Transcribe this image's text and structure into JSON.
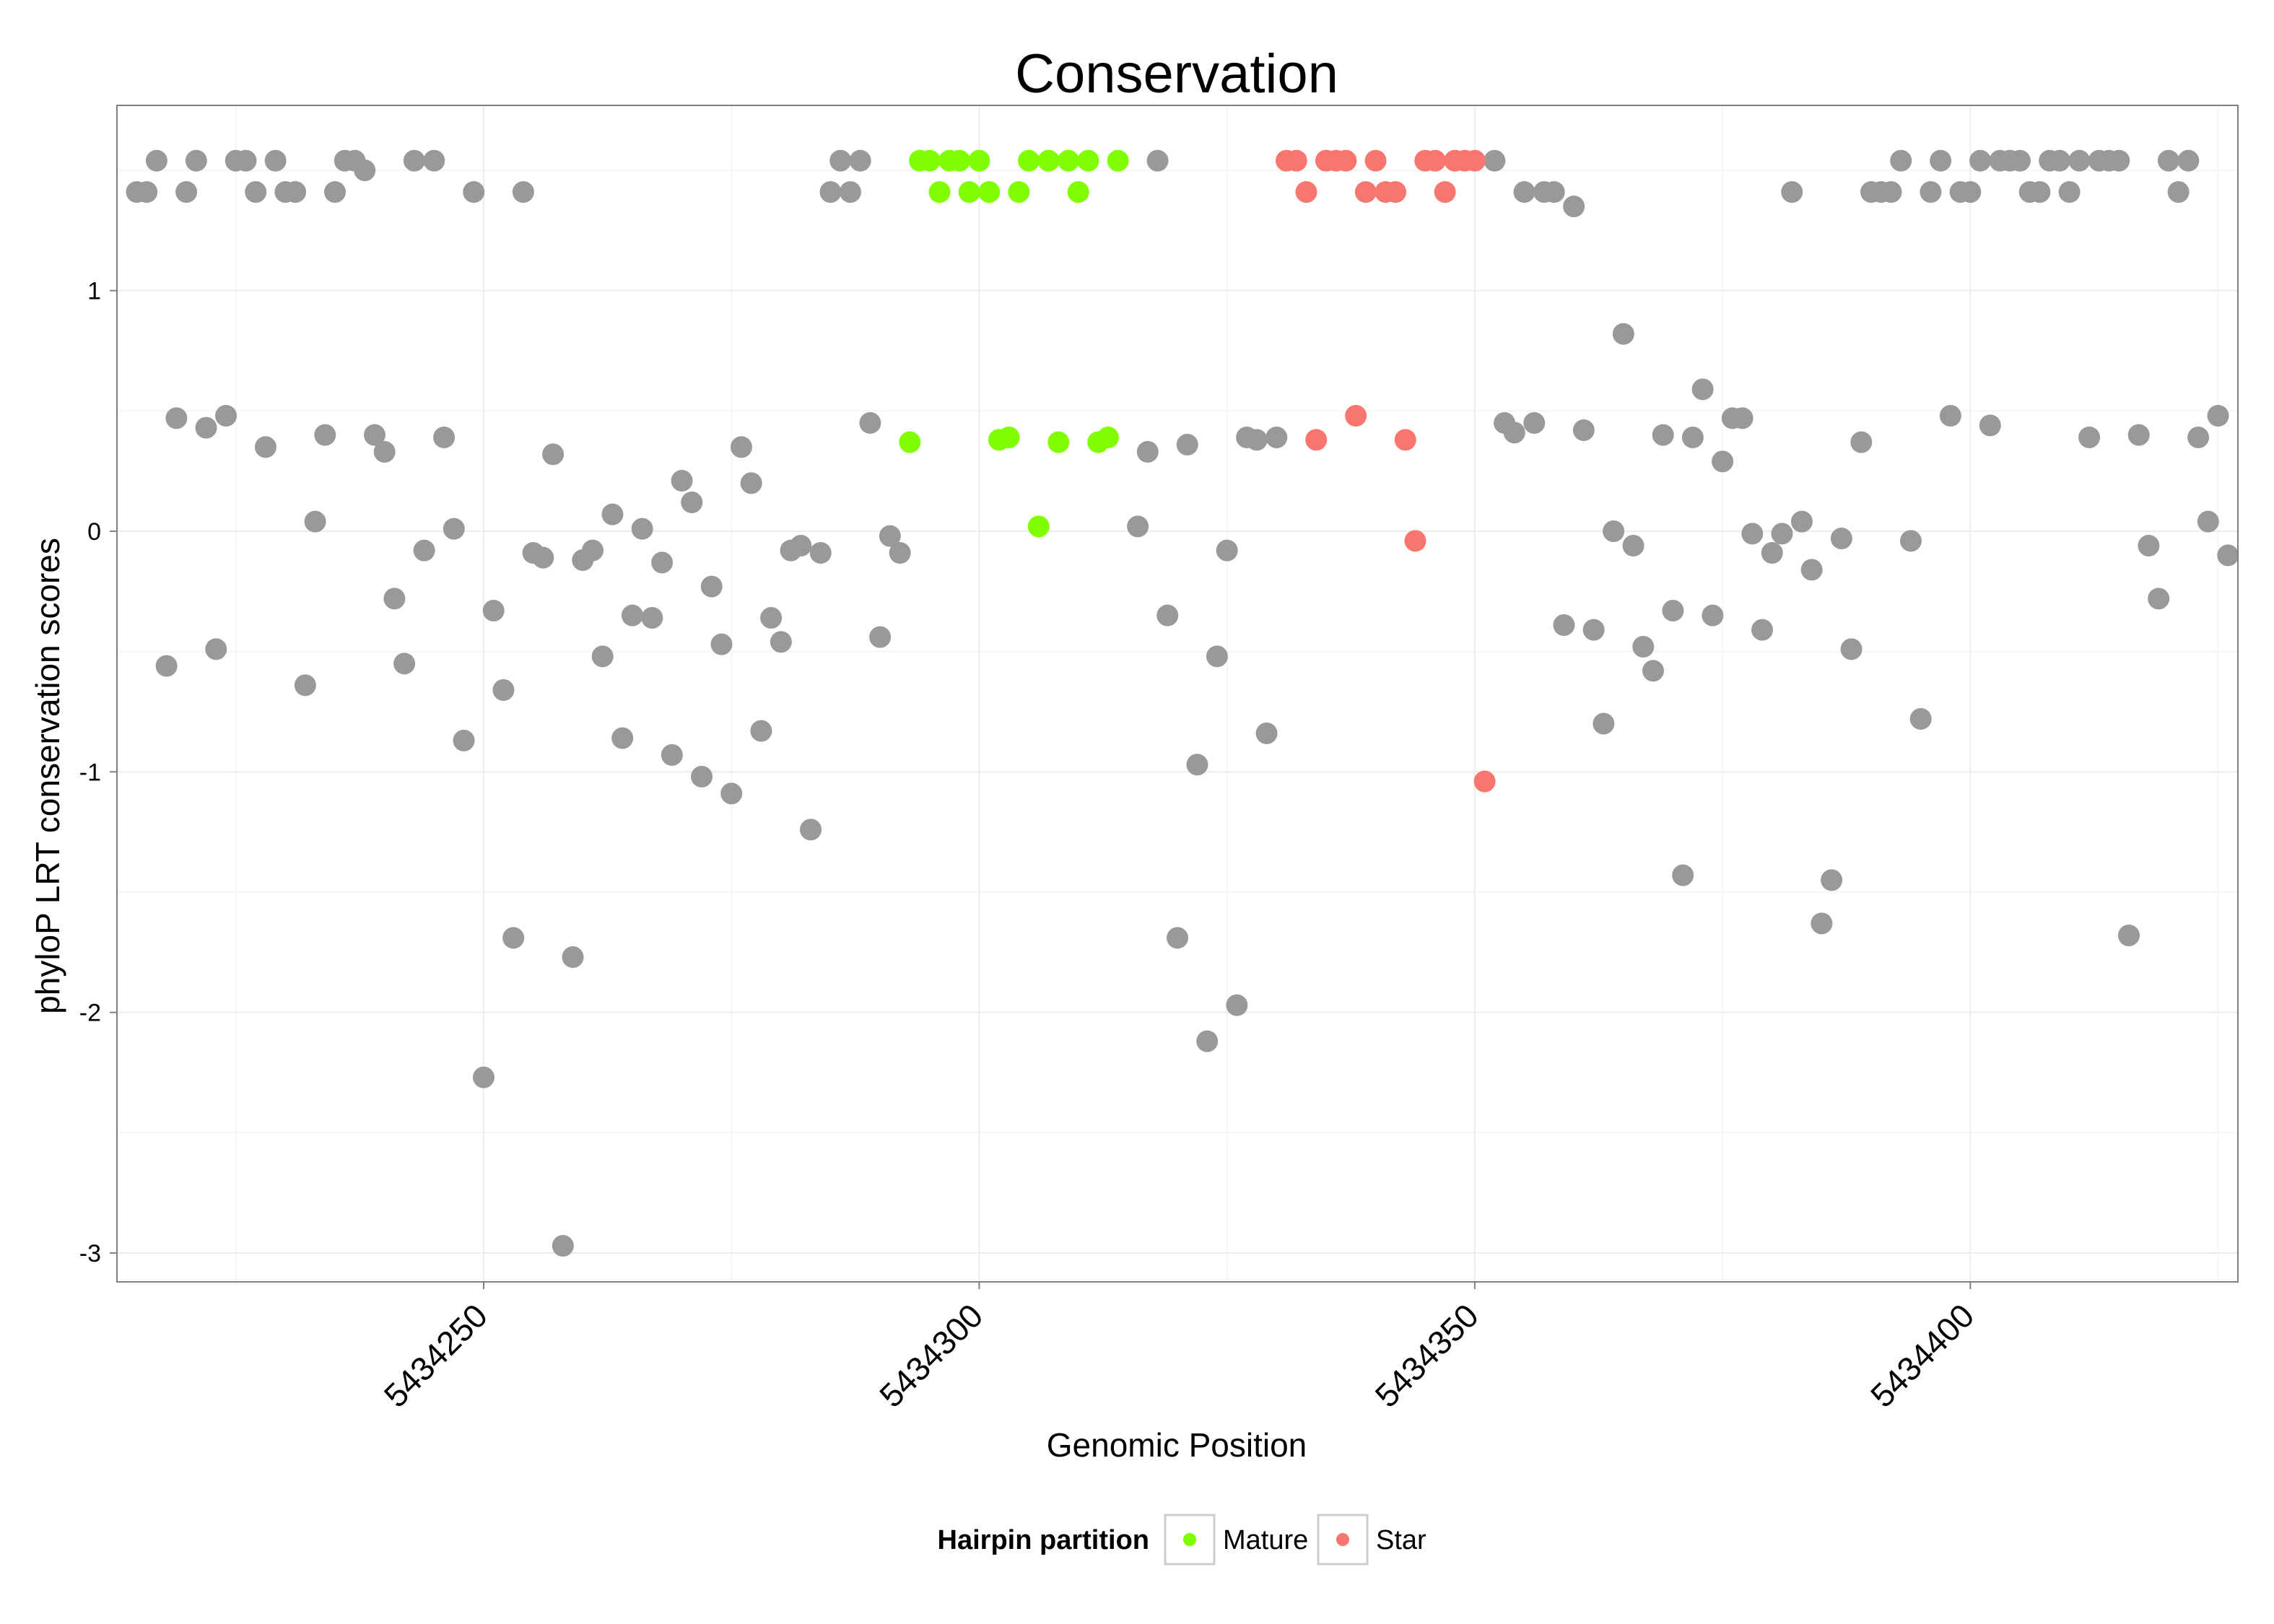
{
  "chart_data": {
    "type": "scatter",
    "title": "Conservation",
    "xlabel": "Genomic Position",
    "ylabel": "phyloP LRT conservation scores",
    "xlim": [
      5434213,
      5434427
    ],
    "ylim": [
      -3.12,
      1.77
    ],
    "x_ticks": [
      5434250,
      5434300,
      5434350,
      5434400
    ],
    "x_tick_labels": [
      "5434250",
      "5434300",
      "5434350",
      "5434400"
    ],
    "y_ticks": [
      -3,
      -2,
      -1,
      0,
      1
    ],
    "y_tick_labels": [
      "-3",
      "-2",
      "-1",
      "0",
      "1"
    ],
    "legend": {
      "title": "Hairpin partition",
      "position": "bottom",
      "entries": [
        {
          "label": "Mature",
          "color": "#7FFF00"
        },
        {
          "label": "Star",
          "color": "#F8766D"
        }
      ]
    },
    "colors": {
      "Other": "#999999",
      "Mature": "#7FFF00",
      "Star": "#F8766D"
    },
    "series": [
      {
        "name": "Other",
        "points": [
          [
            5434215,
            1.41
          ],
          [
            5434216,
            1.41
          ],
          [
            5434217,
            1.54
          ],
          [
            5434218,
            -0.56
          ],
          [
            5434219,
            0.47
          ],
          [
            5434220,
            1.41
          ],
          [
            5434221,
            1.54
          ],
          [
            5434222,
            0.43
          ],
          [
            5434223,
            -0.49
          ],
          [
            5434224,
            0.48
          ],
          [
            5434225,
            1.54
          ],
          [
            5434226,
            1.54
          ],
          [
            5434227,
            1.41
          ],
          [
            5434228,
            0.35
          ],
          [
            5434229,
            1.54
          ],
          [
            5434230,
            1.41
          ],
          [
            5434231,
            1.41
          ],
          [
            5434232,
            -0.64
          ],
          [
            5434233,
            0.04
          ],
          [
            5434234,
            0.4
          ],
          [
            5434235,
            1.41
          ],
          [
            5434236,
            1.54
          ],
          [
            5434237,
            1.54
          ],
          [
            5434238,
            1.5
          ],
          [
            5434239,
            0.4
          ],
          [
            5434240,
            0.33
          ],
          [
            5434241,
            -0.28
          ],
          [
            5434242,
            -0.55
          ],
          [
            5434243,
            1.54
          ],
          [
            5434244,
            -0.08
          ],
          [
            5434245,
            1.54
          ],
          [
            5434246,
            0.39
          ],
          [
            5434247,
            0.01
          ],
          [
            5434248,
            -0.87
          ],
          [
            5434249,
            1.41
          ],
          [
            5434250,
            -2.27
          ],
          [
            5434251,
            -0.33
          ],
          [
            5434252,
            -0.66
          ],
          [
            5434253,
            -1.69
          ],
          [
            5434254,
            1.41
          ],
          [
            5434255,
            -0.09
          ],
          [
            5434256,
            -0.11
          ],
          [
            5434257,
            0.32
          ],
          [
            5434258,
            -2.97
          ],
          [
            5434259,
            -1.77
          ],
          [
            5434260,
            -0.12
          ],
          [
            5434261,
            -0.08
          ],
          [
            5434262,
            -0.52
          ],
          [
            5434263,
            0.07
          ],
          [
            5434264,
            -0.86
          ],
          [
            5434265,
            -0.35
          ],
          [
            5434266,
            0.01
          ],
          [
            5434267,
            -0.36
          ],
          [
            5434268,
            -0.13
          ],
          [
            5434269,
            -0.93
          ],
          [
            5434270,
            0.21
          ],
          [
            5434271,
            0.12
          ],
          [
            5434272,
            -1.02
          ],
          [
            5434273,
            -0.23
          ],
          [
            5434274,
            -0.47
          ],
          [
            5434275,
            -1.09
          ],
          [
            5434276,
            0.35
          ],
          [
            5434277,
            0.2
          ],
          [
            5434278,
            -0.83
          ],
          [
            5434279,
            -0.36
          ],
          [
            5434280,
            -0.46
          ],
          [
            5434281,
            -0.08
          ],
          [
            5434282,
            -0.06
          ],
          [
            5434283,
            -1.24
          ],
          [
            5434284,
            -0.09
          ],
          [
            5434285,
            1.41
          ],
          [
            5434286,
            1.54
          ],
          [
            5434287,
            1.41
          ],
          [
            5434288,
            1.54
          ],
          [
            5434289,
            0.45
          ],
          [
            5434290,
            -0.44
          ],
          [
            5434291,
            -0.02
          ],
          [
            5434292,
            -0.09
          ],
          [
            5434316,
            0.02
          ],
          [
            5434317,
            0.33
          ],
          [
            5434318,
            1.54
          ],
          [
            5434319,
            -0.35
          ],
          [
            5434320,
            -1.69
          ],
          [
            5434321,
            0.36
          ],
          [
            5434322,
            -0.97
          ],
          [
            5434323,
            -2.12
          ],
          [
            5434324,
            -0.52
          ],
          [
            5434325,
            -0.08
          ],
          [
            5434326,
            -1.97
          ],
          [
            5434327,
            0.39
          ],
          [
            5434328,
            0.38
          ],
          [
            5434329,
            -0.84
          ],
          [
            5434330,
            0.39
          ],
          [
            5434352,
            1.54
          ],
          [
            5434353,
            0.45
          ],
          [
            5434354,
            0.41
          ],
          [
            5434355,
            1.41
          ],
          [
            5434356,
            0.45
          ],
          [
            5434357,
            1.41
          ],
          [
            5434358,
            1.41
          ],
          [
            5434359,
            -0.39
          ],
          [
            5434360,
            1.35
          ],
          [
            5434361,
            0.42
          ],
          [
            5434362,
            -0.41
          ],
          [
            5434363,
            -0.8
          ],
          [
            5434364,
            0.0
          ],
          [
            5434365,
            0.82
          ],
          [
            5434366,
            -0.06
          ],
          [
            5434367,
            -0.48
          ],
          [
            5434368,
            -0.58
          ],
          [
            5434369,
            0.4
          ],
          [
            5434370,
            -0.33
          ],
          [
            5434371,
            -1.43
          ],
          [
            5434372,
            0.39
          ],
          [
            5434373,
            0.59
          ],
          [
            5434374,
            -0.35
          ],
          [
            5434375,
            0.29
          ],
          [
            5434376,
            0.47
          ],
          [
            5434377,
            0.47
          ],
          [
            5434378,
            -0.01
          ],
          [
            5434379,
            -0.41
          ],
          [
            5434380,
            -0.09
          ],
          [
            5434381,
            -0.01
          ],
          [
            5434382,
            1.41
          ],
          [
            5434383,
            0.04
          ],
          [
            5434384,
            -0.16
          ],
          [
            5434385,
            -1.63
          ],
          [
            5434386,
            -1.45
          ],
          [
            5434387,
            -0.03
          ],
          [
            5434388,
            -0.49
          ],
          [
            5434389,
            0.37
          ],
          [
            5434390,
            1.41
          ],
          [
            5434391,
            1.41
          ],
          [
            5434392,
            1.41
          ],
          [
            5434393,
            1.54
          ],
          [
            5434394,
            -0.04
          ],
          [
            5434395,
            -0.78
          ],
          [
            5434396,
            1.41
          ],
          [
            5434397,
            1.54
          ],
          [
            5434398,
            0.48
          ],
          [
            5434399,
            1.41
          ],
          [
            5434400,
            1.41
          ],
          [
            5434401,
            1.54
          ],
          [
            5434402,
            0.44
          ],
          [
            5434403,
            1.54
          ],
          [
            5434404,
            1.54
          ],
          [
            5434405,
            1.54
          ],
          [
            5434406,
            1.41
          ],
          [
            5434407,
            1.41
          ],
          [
            5434408,
            1.54
          ],
          [
            5434409,
            1.54
          ],
          [
            5434410,
            1.41
          ],
          [
            5434411,
            1.54
          ],
          [
            5434412,
            0.39
          ],
          [
            5434413,
            1.54
          ],
          [
            5434414,
            1.54
          ],
          [
            5434415,
            1.54
          ],
          [
            5434416,
            -1.68
          ],
          [
            5434417,
            0.4
          ],
          [
            5434418,
            -0.06
          ],
          [
            5434419,
            -0.28
          ],
          [
            5434420,
            1.54
          ],
          [
            5434421,
            1.41
          ],
          [
            5434422,
            1.54
          ],
          [
            5434423,
            0.39
          ],
          [
            5434424,
            0.04
          ],
          [
            5434425,
            0.48
          ],
          [
            5434426,
            -0.1
          ]
        ]
      },
      {
        "name": "Mature",
        "points": [
          [
            5434293,
            0.37
          ],
          [
            5434294,
            1.54
          ],
          [
            5434295,
            1.54
          ],
          [
            5434296,
            1.41
          ],
          [
            5434297,
            1.54
          ],
          [
            5434298,
            1.54
          ],
          [
            5434299,
            1.41
          ],
          [
            5434300,
            1.54
          ],
          [
            5434301,
            1.41
          ],
          [
            5434302,
            0.38
          ],
          [
            5434303,
            0.39
          ],
          [
            5434304,
            1.41
          ],
          [
            5434305,
            1.54
          ],
          [
            5434306,
            0.02
          ],
          [
            5434307,
            1.54
          ],
          [
            5434308,
            0.37
          ],
          [
            5434309,
            1.54
          ],
          [
            5434310,
            1.41
          ],
          [
            5434311,
            1.54
          ],
          [
            5434312,
            0.37
          ],
          [
            5434313,
            0.39
          ],
          [
            5434314,
            1.54
          ]
        ]
      },
      {
        "name": "Star",
        "points": [
          [
            5434331,
            1.54
          ],
          [
            5434332,
            1.54
          ],
          [
            5434333,
            1.41
          ],
          [
            5434334,
            0.38
          ],
          [
            5434335,
            1.54
          ],
          [
            5434336,
            1.54
          ],
          [
            5434337,
            1.54
          ],
          [
            5434338,
            0.48
          ],
          [
            5434339,
            1.41
          ],
          [
            5434340,
            1.54
          ],
          [
            5434341,
            1.41
          ],
          [
            5434342,
            1.41
          ],
          [
            5434343,
            0.38
          ],
          [
            5434344,
            -0.04
          ],
          [
            5434345,
            1.54
          ],
          [
            5434346,
            1.54
          ],
          [
            5434347,
            1.41
          ],
          [
            5434348,
            1.54
          ],
          [
            5434349,
            1.54
          ],
          [
            5434350,
            1.54
          ],
          [
            5434351,
            -1.04
          ]
        ]
      }
    ]
  }
}
